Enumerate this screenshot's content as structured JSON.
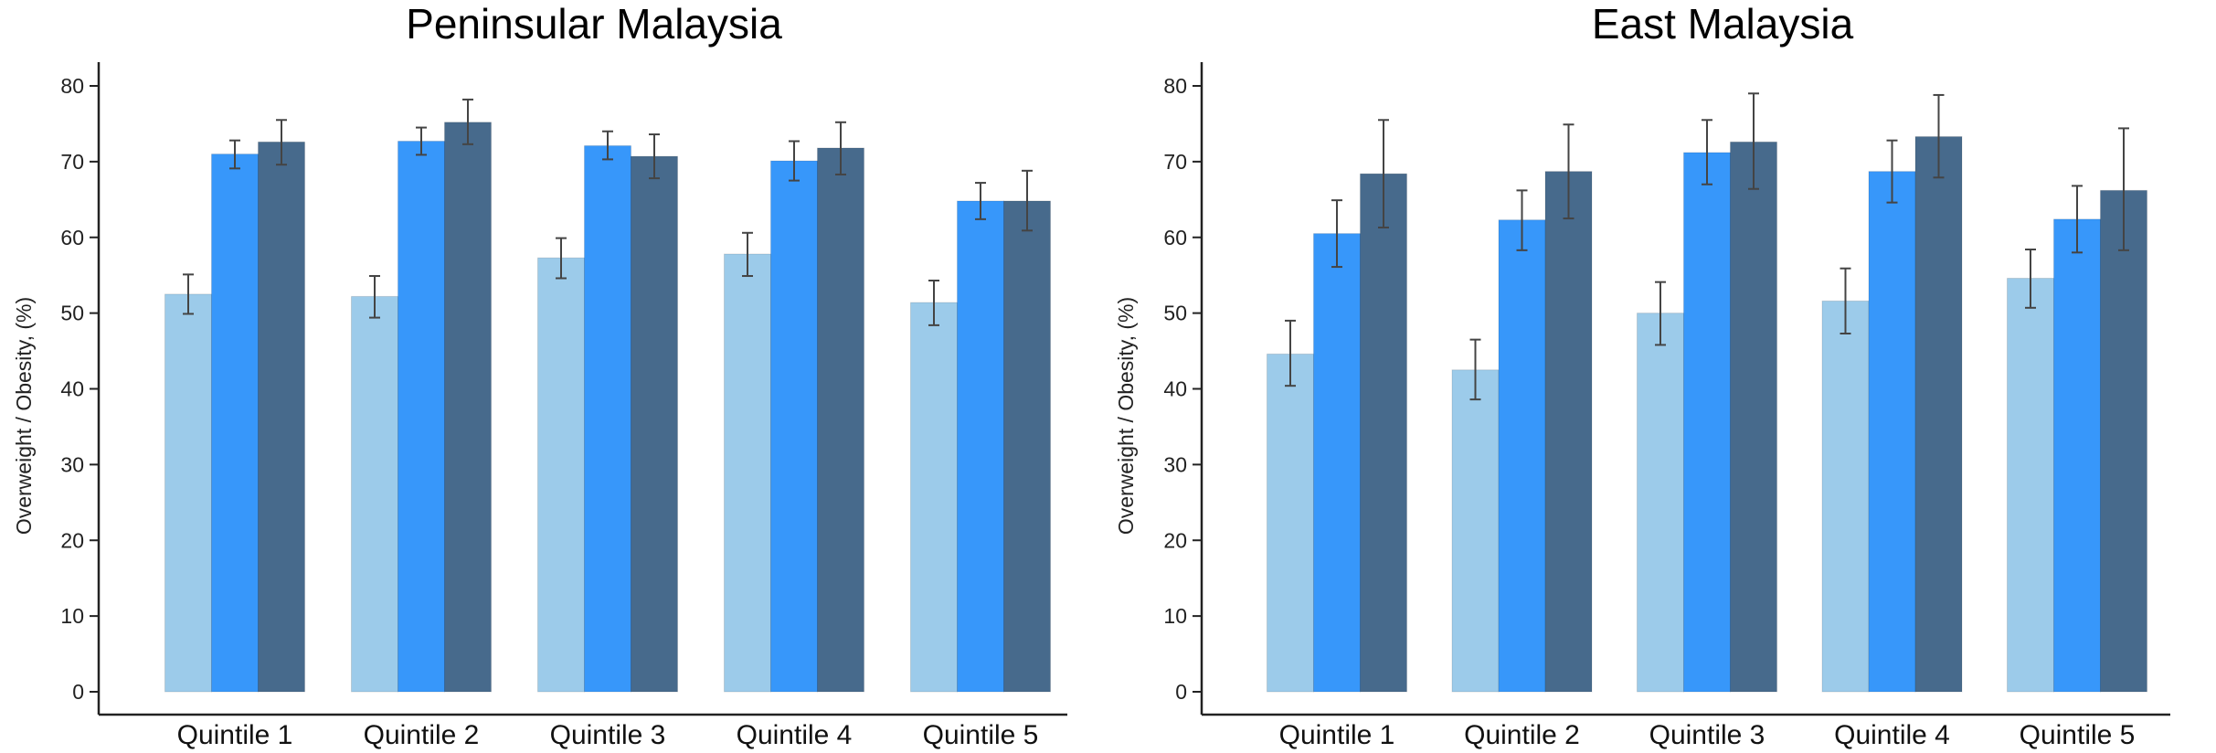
{
  "chart_data": [
    {
      "type": "bar",
      "title": "Peninsular Malaysia",
      "xlabel": "",
      "ylabel": "Overweight / Obesity, (%)",
      "ylim": [
        0,
        80
      ],
      "yticks": [
        0,
        10,
        20,
        30,
        40,
        50,
        60,
        70,
        80
      ],
      "grid": false,
      "legend": "none",
      "categories": [
        "Quintile 1",
        "Quintile 2",
        "Quintile 3",
        "Quintile 4",
        "Quintile 5"
      ],
      "series": [
        {
          "color": "#9ccbea",
          "values": [
            52.5,
            52.2,
            57.3,
            57.8,
            51.4
          ],
          "err_low": [
            49.9,
            49.4,
            54.6,
            54.9,
            48.4
          ],
          "err_high": [
            55.1,
            54.9,
            59.9,
            60.6,
            54.3
          ]
        },
        {
          "color": "#3797fa",
          "values": [
            71.0,
            72.7,
            72.1,
            70.1,
            64.8
          ],
          "err_low": [
            69.1,
            70.9,
            70.3,
            67.5,
            62.4
          ],
          "err_high": [
            72.8,
            74.5,
            74.0,
            72.7,
            67.2
          ]
        },
        {
          "color": "#476a8c",
          "values": [
            72.6,
            75.2,
            70.7,
            71.8,
            64.8
          ],
          "err_low": [
            69.6,
            72.3,
            67.8,
            68.3,
            60.9
          ],
          "err_high": [
            75.5,
            78.2,
            73.6,
            75.2,
            68.8
          ]
        }
      ]
    },
    {
      "type": "bar",
      "title": "East Malaysia",
      "xlabel": "",
      "ylabel": "Overweight / Obesity, (%)",
      "ylim": [
        0,
        80
      ],
      "yticks": [
        0,
        10,
        20,
        30,
        40,
        50,
        60,
        70,
        80
      ],
      "grid": false,
      "legend": "none",
      "categories": [
        "Quintile 1",
        "Quintile 2",
        "Quintile 3",
        "Quintile 4",
        "Quintile 5"
      ],
      "series": [
        {
          "color": "#9ccbea",
          "values": [
            44.6,
            42.5,
            50.0,
            51.6,
            54.6
          ],
          "err_low": [
            40.4,
            38.6,
            45.8,
            47.3,
            50.7
          ],
          "err_high": [
            49.0,
            46.5,
            54.1,
            55.9,
            58.4
          ]
        },
        {
          "color": "#3797fa",
          "values": [
            60.5,
            62.3,
            71.2,
            68.7,
            62.4
          ],
          "err_low": [
            56.1,
            58.3,
            67.0,
            64.6,
            58.0
          ],
          "err_high": [
            64.9,
            66.2,
            75.5,
            72.8,
            66.8
          ]
        },
        {
          "color": "#476a8c",
          "values": [
            68.4,
            68.7,
            72.6,
            73.3,
            66.2
          ],
          "err_low": [
            61.3,
            62.5,
            66.4,
            67.9,
            58.3
          ],
          "err_high": [
            75.5,
            74.9,
            79.0,
            78.8,
            74.4
          ]
        }
      ]
    }
  ]
}
